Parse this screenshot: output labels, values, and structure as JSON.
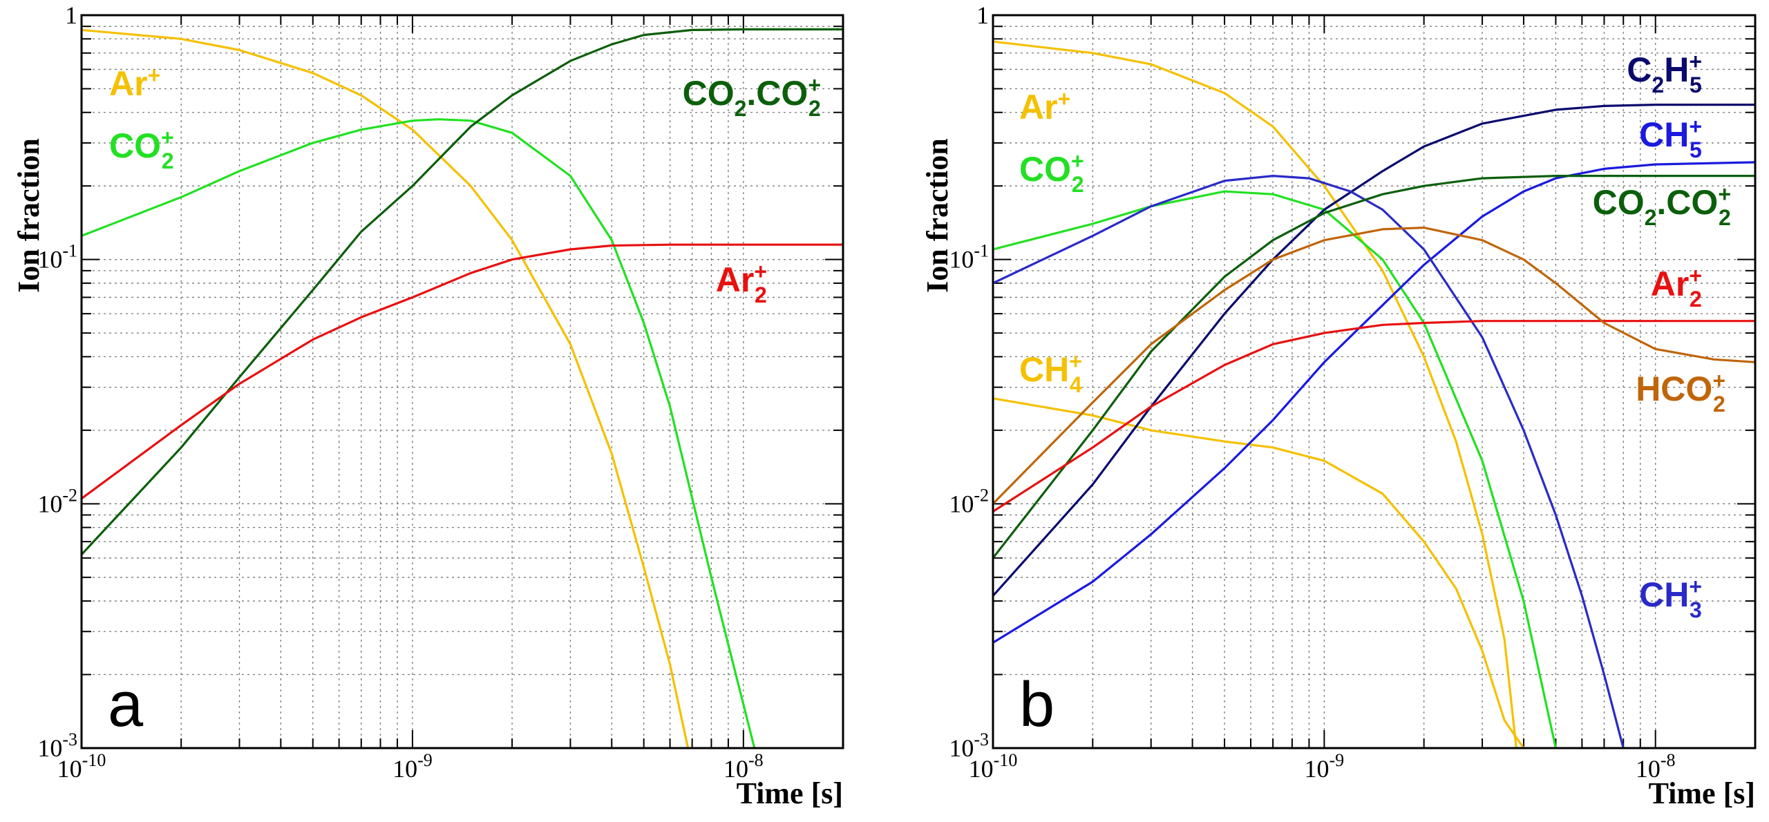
{
  "chart_data": [
    {
      "panel_letter": "a",
      "type": "line",
      "xlabel": "Time [s]",
      "ylabel": "Ion fraction",
      "x_scale": "log",
      "y_scale": "log",
      "xlim": [
        1e-10,
        2e-08
      ],
      "ylim": [
        0.001,
        1
      ],
      "grid": true,
      "x_ticks": [
        {
          "value": 1e-10,
          "base": "10",
          "exp": "-10"
        },
        {
          "value": 1e-09,
          "base": "10",
          "exp": "-9"
        },
        {
          "value": 1e-08,
          "base": "10",
          "exp": "-8"
        }
      ],
      "y_ticks": [
        {
          "value": 1,
          "base": "1",
          "exp": ""
        },
        {
          "value": 0.1,
          "base": "10",
          "exp": "-1"
        },
        {
          "value": 0.01,
          "base": "10",
          "exp": "-2"
        },
        {
          "value": 0.001,
          "base": "10",
          "exp": "-3"
        }
      ],
      "series": [
        {
          "label_parts": [
            [
              "Ar",
              ""
            ],
            [
              "",
              "+"
            ]
          ],
          "color": "#f5c000",
          "points": [
            [
              1e-10,
              0.87
            ],
            [
              2e-10,
              0.8
            ],
            [
              3e-10,
              0.72
            ],
            [
              5e-10,
              0.58
            ],
            [
              7e-10,
              0.47
            ],
            [
              1e-09,
              0.34
            ],
            [
              1.5e-09,
              0.2
            ],
            [
              2e-09,
              0.12
            ],
            [
              3e-09,
              0.045
            ],
            [
              4e-09,
              0.016
            ],
            [
              5e-09,
              0.0055
            ],
            [
              6e-09,
              0.0022
            ],
            [
              6.8e-09,
              0.001
            ]
          ]
        },
        {
          "label_parts": [
            [
              "CO",
              ""
            ],
            [
              "",
              "+"
            ],
            [
              "",
              "2"
            ]
          ],
          "color": "#22e022",
          "points": [
            [
              1e-10,
              0.125
            ],
            [
              2e-10,
              0.18
            ],
            [
              3e-10,
              0.23
            ],
            [
              5e-10,
              0.3
            ],
            [
              7e-10,
              0.34
            ],
            [
              1e-09,
              0.37
            ],
            [
              1.2e-09,
              0.375
            ],
            [
              1.5e-09,
              0.37
            ],
            [
              2e-09,
              0.33
            ],
            [
              3e-09,
              0.22
            ],
            [
              4e-09,
              0.12
            ],
            [
              5e-09,
              0.055
            ],
            [
              6e-09,
              0.025
            ],
            [
              8e-09,
              0.005
            ],
            [
              1.08e-08,
              0.001
            ]
          ]
        },
        {
          "label_parts": [
            [
              "CO",
              ""
            ],
            [
              "",
              "2"
            ],
            [
              ".CO",
              ""
            ],
            [
              "",
              "+"
            ],
            [
              "",
              "2"
            ]
          ],
          "color": "#0b5f0b",
          "points": [
            [
              1e-10,
              0.0062
            ],
            [
              2e-10,
              0.017
            ],
            [
              3e-10,
              0.033
            ],
            [
              5e-10,
              0.075
            ],
            [
              7e-10,
              0.13
            ],
            [
              1e-09,
              0.2
            ],
            [
              1.5e-09,
              0.35
            ],
            [
              2e-09,
              0.47
            ],
            [
              3e-09,
              0.65
            ],
            [
              4e-09,
              0.76
            ],
            [
              5e-09,
              0.83
            ],
            [
              7e-09,
              0.87
            ],
            [
              1e-08,
              0.875
            ],
            [
              2e-08,
              0.875
            ]
          ]
        },
        {
          "label_parts": [
            [
              "Ar",
              ""
            ],
            [
              "",
              "+"
            ],
            [
              "",
              "2"
            ]
          ],
          "color": "#e81010",
          "points": [
            [
              1e-10,
              0.0105
            ],
            [
              2e-10,
              0.021
            ],
            [
              3e-10,
              0.031
            ],
            [
              5e-10,
              0.047
            ],
            [
              7e-10,
              0.058
            ],
            [
              1e-09,
              0.07
            ],
            [
              1.5e-09,
              0.088
            ],
            [
              2e-09,
              0.1
            ],
            [
              3e-09,
              0.11
            ],
            [
              4e-09,
              0.114
            ],
            [
              6e-09,
              0.115
            ],
            [
              1e-08,
              0.115
            ],
            [
              2e-08,
              0.115
            ]
          ]
        }
      ]
    },
    {
      "panel_letter": "b",
      "type": "line",
      "xlabel": "Time [s]",
      "ylabel": "Ion fraction",
      "x_scale": "log",
      "y_scale": "log",
      "xlim": [
        1e-10,
        2e-08
      ],
      "ylim": [
        0.001,
        1
      ],
      "grid": true,
      "x_ticks": [
        {
          "value": 1e-10,
          "base": "10",
          "exp": "-10"
        },
        {
          "value": 1e-09,
          "base": "10",
          "exp": "-9"
        },
        {
          "value": 1e-08,
          "base": "10",
          "exp": "-8"
        }
      ],
      "y_ticks": [
        {
          "value": 1,
          "base": "1",
          "exp": ""
        },
        {
          "value": 0.1,
          "base": "10",
          "exp": "-1"
        },
        {
          "value": 0.01,
          "base": "10",
          "exp": "-2"
        },
        {
          "value": 0.001,
          "base": "10",
          "exp": "-3"
        }
      ],
      "series": [
        {
          "label_parts": [
            [
              "Ar",
              ""
            ],
            [
              "",
              "+"
            ]
          ],
          "color": "#f5c000",
          "points": [
            [
              1e-10,
              0.78
            ],
            [
              2e-10,
              0.7
            ],
            [
              3e-10,
              0.63
            ],
            [
              5e-10,
              0.48
            ],
            [
              7e-10,
              0.35
            ],
            [
              1e-09,
              0.2
            ],
            [
              1.5e-09,
              0.09
            ],
            [
              2e-09,
              0.04
            ],
            [
              2.5e-09,
              0.018
            ],
            [
              3e-09,
              0.0075
            ],
            [
              3.5e-09,
              0.0028
            ],
            [
              3.8e-09,
              0.001
            ]
          ]
        },
        {
          "label_parts": [
            [
              "CO",
              ""
            ],
            [
              "",
              "+"
            ],
            [
              "",
              "2"
            ]
          ],
          "color": "#22e022",
          "points": [
            [
              1e-10,
              0.11
            ],
            [
              2e-10,
              0.14
            ],
            [
              3e-10,
              0.165
            ],
            [
              5e-10,
              0.19
            ],
            [
              7e-10,
              0.185
            ],
            [
              1e-09,
              0.16
            ],
            [
              1.5e-09,
              0.1
            ],
            [
              2e-09,
              0.055
            ],
            [
              3e-09,
              0.015
            ],
            [
              4e-09,
              0.004
            ],
            [
              5e-09,
              0.001
            ]
          ]
        },
        {
          "label_parts": [
            [
              "CH",
              ""
            ],
            [
              "",
              "+"
            ],
            [
              "",
              "4"
            ]
          ],
          "color": "#f5c000",
          "points": [
            [
              1e-10,
              0.027
            ],
            [
              2e-10,
              0.023
            ],
            [
              3e-10,
              0.02
            ],
            [
              5e-10,
              0.018
            ],
            [
              7e-10,
              0.017
            ],
            [
              1e-09,
              0.015
            ],
            [
              1.5e-09,
              0.011
            ],
            [
              2e-09,
              0.007
            ],
            [
              2.5e-09,
              0.0045
            ],
            [
              3e-09,
              0.0025
            ],
            [
              3.5e-09,
              0.0013
            ],
            [
              4e-09,
              0.001
            ]
          ]
        },
        {
          "label_parts": [
            [
              "C",
              ""
            ],
            [
              "",
              "2"
            ],
            [
              "H",
              ""
            ],
            [
              "",
              "+"
            ],
            [
              "",
              "5"
            ]
          ],
          "color": "#0a0a6e",
          "points": [
            [
              1e-10,
              0.0042
            ],
            [
              2e-10,
              0.012
            ],
            [
              3e-10,
              0.025
            ],
            [
              5e-10,
              0.06
            ],
            [
              7e-10,
              0.1
            ],
            [
              1e-09,
              0.16
            ],
            [
              1.5e-09,
              0.23
            ],
            [
              2e-09,
              0.29
            ],
            [
              3e-09,
              0.36
            ],
            [
              5e-09,
              0.41
            ],
            [
              7e-09,
              0.425
            ],
            [
              1e-08,
              0.43
            ],
            [
              2e-08,
              0.43
            ]
          ]
        },
        {
          "label_parts": [
            [
              "CH",
              ""
            ],
            [
              "",
              "+"
            ],
            [
              "",
              "5"
            ]
          ],
          "color": "#1a1ae0",
          "points": [
            [
              1e-10,
              0.0027
            ],
            [
              2e-10,
              0.0048
            ],
            [
              3e-10,
              0.0075
            ],
            [
              5e-10,
              0.014
            ],
            [
              7e-10,
              0.022
            ],
            [
              1e-09,
              0.038
            ],
            [
              1.5e-09,
              0.065
            ],
            [
              2e-09,
              0.095
            ],
            [
              3e-09,
              0.15
            ],
            [
              4e-09,
              0.19
            ],
            [
              5e-09,
              0.215
            ],
            [
              7e-09,
              0.235
            ],
            [
              1e-08,
              0.245
            ],
            [
              2e-08,
              0.25
            ]
          ]
        },
        {
          "label_parts": [
            [
              "CH",
              ""
            ],
            [
              "",
              "+"
            ],
            [
              "",
              "3"
            ]
          ],
          "color": "#2a2ac8",
          "points": [
            [
              1e-10,
              0.08
            ],
            [
              2e-10,
              0.125
            ],
            [
              3e-10,
              0.165
            ],
            [
              5e-10,
              0.21
            ],
            [
              7e-10,
              0.22
            ],
            [
              9e-10,
              0.215
            ],
            [
              1.2e-09,
              0.19
            ],
            [
              1.5e-09,
              0.16
            ],
            [
              2e-09,
              0.11
            ],
            [
              3e-09,
              0.048
            ],
            [
              4e-09,
              0.02
            ],
            [
              5e-09,
              0.009
            ],
            [
              6e-09,
              0.0042
            ],
            [
              7e-09,
              0.002
            ],
            [
              8e-09,
              0.001
            ]
          ]
        },
        {
          "label_parts": [
            [
              "CO",
              ""
            ],
            [
              "",
              "2"
            ],
            [
              ".CO",
              ""
            ],
            [
              "",
              "+"
            ],
            [
              "",
              "2"
            ]
          ],
          "color": "#0b5f0b",
          "points": [
            [
              1e-10,
              0.006
            ],
            [
              2e-10,
              0.02
            ],
            [
              3e-10,
              0.042
            ],
            [
              5e-10,
              0.085
            ],
            [
              7e-10,
              0.12
            ],
            [
              1e-09,
              0.155
            ],
            [
              1.5e-09,
              0.185
            ],
            [
              2e-09,
              0.2
            ],
            [
              3e-09,
              0.215
            ],
            [
              5e-09,
              0.22
            ],
            [
              1e-08,
              0.22
            ],
            [
              2e-08,
              0.22
            ]
          ]
        },
        {
          "label_parts": [
            [
              "Ar",
              ""
            ],
            [
              "",
              "+"
            ],
            [
              "",
              "2"
            ]
          ],
          "color": "#e81010",
          "points": [
            [
              1e-10,
              0.0093
            ],
            [
              2e-10,
              0.017
            ],
            [
              3e-10,
              0.025
            ],
            [
              5e-10,
              0.037
            ],
            [
              7e-10,
              0.045
            ],
            [
              1e-09,
              0.05
            ],
            [
              1.5e-09,
              0.054
            ],
            [
              2e-09,
              0.055
            ],
            [
              3e-09,
              0.056
            ],
            [
              5e-09,
              0.056
            ],
            [
              1e-08,
              0.056
            ],
            [
              2e-08,
              0.056
            ]
          ]
        },
        {
          "label_parts": [
            [
              "HCO",
              ""
            ],
            [
              "",
              "+"
            ],
            [
              "",
              "2"
            ]
          ],
          "color": "#c0650a",
          "points": [
            [
              1e-10,
              0.01
            ],
            [
              2e-10,
              0.026
            ],
            [
              3e-10,
              0.045
            ],
            [
              5e-10,
              0.075
            ],
            [
              7e-10,
              0.1
            ],
            [
              1e-09,
              0.12
            ],
            [
              1.5e-09,
              0.133
            ],
            [
              2e-09,
              0.135
            ],
            [
              3e-09,
              0.12
            ],
            [
              4e-09,
              0.1
            ],
            [
              5e-09,
              0.08
            ],
            [
              7e-09,
              0.055
            ],
            [
              1e-08,
              0.043
            ],
            [
              1.5e-08,
              0.039
            ],
            [
              2e-08,
              0.038
            ]
          ]
        }
      ]
    }
  ]
}
